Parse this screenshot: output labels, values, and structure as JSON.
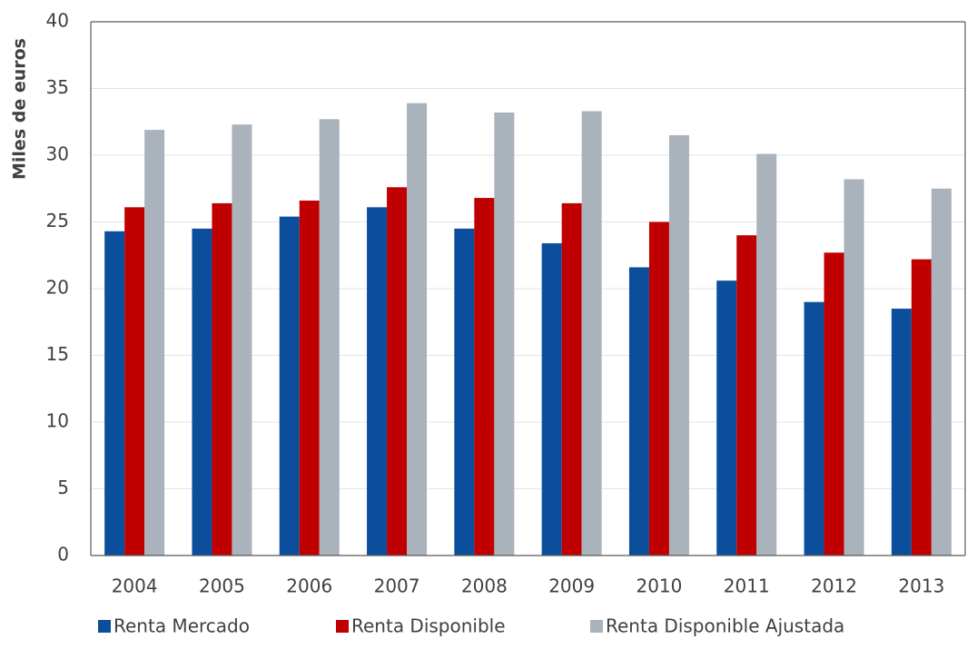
{
  "chart_data": {
    "type": "bar",
    "y_label": "Miles de euros",
    "categories": [
      "2004",
      "2005",
      "2006",
      "2007",
      "2008",
      "2009",
      "2010",
      "2011",
      "2012",
      "2013"
    ],
    "series": [
      {
        "name": "Renta Mercado",
        "color": "#0b4f9c",
        "values": [
          24.3,
          24.5,
          25.4,
          26.1,
          24.5,
          23.4,
          21.6,
          20.6,
          19.0,
          18.5
        ]
      },
      {
        "name": "Renta Disponible",
        "color": "#c00000",
        "values": [
          26.1,
          26.4,
          26.6,
          27.6,
          26.8,
          26.4,
          25.0,
          24.0,
          22.7,
          22.2
        ]
      },
      {
        "name": "Renta Disponible Ajustada",
        "color": "#aab2bc",
        "values": [
          31.9,
          32.3,
          32.7,
          33.9,
          33.2,
          33.3,
          31.5,
          30.1,
          28.2,
          27.5
        ]
      }
    ],
    "ylim": [
      0,
      40
    ],
    "yticks": [
      0,
      5,
      10,
      15,
      20,
      25,
      30,
      35,
      40
    ],
    "grid": true,
    "legend": "bottom"
  }
}
